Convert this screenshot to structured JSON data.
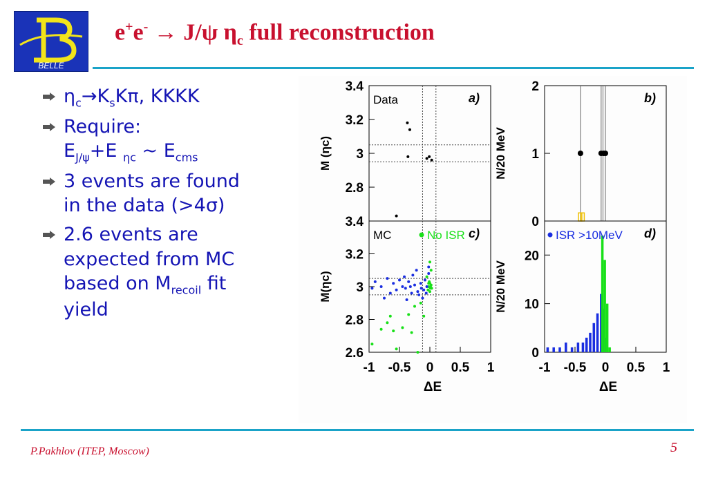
{
  "header": {
    "logo_text": "BELLE",
    "title_main": "e",
    "title_sup1": "+",
    "title_mid": "e",
    "title_sup2": "-",
    "title_arrow": " → ",
    "title_jpsi": "J/ψ η",
    "title_sub": "c",
    "title_end": " full reconstruction"
  },
  "bullets": {
    "b1": {
      "eta": "η",
      "c": "c",
      "arrow": "→",
      "k": "K",
      "s": "s",
      "rest": "Kπ, KKKK"
    },
    "b2": {
      "line1": "Require:",
      "e1": "E",
      "sub1": "J/ψ",
      "plus": "+E ",
      "sub2": "ηc",
      "tilde": " ~ E",
      "sub3": "cms"
    },
    "b3": {
      "text1": "3 events are found",
      "text2": "in the data (>4σ)"
    },
    "b4": {
      "text1": "2.6 events are",
      "text2": "expected from MC",
      "text3": "based on M",
      "sub": "recoil",
      "text4": "  fit",
      "text5": "yield"
    }
  },
  "footer": {
    "author": "P.Pakhlov (ITEP, Moscow)",
    "page": "5"
  },
  "chart_data": [
    {
      "type": "scatter",
      "panel": "a)",
      "label": "Data",
      "ylabel": "M (ηc)",
      "xlim": [
        -1,
        1
      ],
      "ylim": [
        2.6,
        3.4
      ],
      "yticks": [
        "3.4",
        "3.2",
        "3",
        "2.8"
      ],
      "vlines": [
        -0.12,
        0.1
      ],
      "hlines": [
        2.95,
        3.05
      ],
      "points": [
        {
          "x": -0.37,
          "y": 3.18
        },
        {
          "x": -0.33,
          "y": 3.14
        },
        {
          "x": -0.36,
          "y": 2.98
        },
        {
          "x": -0.05,
          "y": 2.97
        },
        {
          "x": -0.01,
          "y": 2.98
        },
        {
          "x": 0.03,
          "y": 2.96
        },
        {
          "x": -0.55,
          "y": 2.63
        }
      ]
    },
    {
      "type": "bar",
      "panel": "b)",
      "ylabel": "N/20 MeV",
      "xlim": [
        -1,
        1
      ],
      "ylim": [
        0,
        2
      ],
      "yticks": [
        "2",
        "1",
        "0"
      ],
      "points": [
        {
          "x": -0.41,
          "y": 1
        },
        {
          "x": -0.07,
          "y": 1
        },
        {
          "x": -0.03,
          "y": 1
        },
        {
          "x": 0.0,
          "y": 1
        }
      ],
      "vlines": [
        -0.41,
        -0.07,
        -0.04,
        0.0
      ],
      "mc_bars": [
        {
          "x": -0.41,
          "y": 0.12
        },
        {
          "x": -0.37,
          "y": 0.12
        }
      ]
    },
    {
      "type": "scatter",
      "panel": "c)",
      "label": "MC",
      "legend": "No ISR",
      "ylabel": "M(ηc)",
      "xlabel": "ΔE",
      "xlim": [
        -1,
        1
      ],
      "ylim": [
        2.6,
        3.4
      ],
      "yticks": [
        "3.4",
        "3.2",
        "3",
        "2.8",
        "2.6"
      ],
      "xticks": [
        "-1",
        "-0.5",
        "0",
        "0.5",
        "1"
      ],
      "vlines": [
        -0.12,
        0.1
      ],
      "hlines": [
        2.95,
        3.05
      ],
      "series": [
        {
          "name": "No ISR",
          "color": "#18e018",
          "points": [
            [
              -0.02,
              3.0
            ],
            [
              0.0,
              3.02
            ],
            [
              0.01,
              2.99
            ],
            [
              -0.03,
              2.98
            ],
            [
              0.02,
              3.01
            ],
            [
              -0.01,
              3.03
            ],
            [
              0.0,
              2.97
            ],
            [
              0.01,
              3.0
            ],
            [
              -0.02,
              3.02
            ],
            [
              0.03,
              2.99
            ],
            [
              0.0,
              3.15
            ],
            [
              0.02,
              3.1
            ],
            [
              -0.05,
              3.06
            ],
            [
              -0.25,
              2.88
            ],
            [
              -0.3,
              2.72
            ],
            [
              -0.45,
              2.75
            ],
            [
              -0.6,
              2.73
            ],
            [
              -0.7,
              2.78
            ],
            [
              -0.2,
              2.6
            ],
            [
              -0.95,
              2.65
            ],
            [
              -0.15,
              2.9
            ],
            [
              -0.1,
              2.82
            ],
            [
              -0.55,
              2.62
            ],
            [
              -0.35,
              2.83
            ],
            [
              -0.8,
              2.74
            ],
            [
              -0.65,
              2.82
            ]
          ]
        },
        {
          "name": "ISR >10MeV",
          "color": "#1a2ee0",
          "points": [
            [
              -0.05,
              3.0
            ],
            [
              -0.1,
              2.98
            ],
            [
              -0.15,
              3.02
            ],
            [
              -0.2,
              2.97
            ],
            [
              -0.25,
              3.01
            ],
            [
              -0.3,
              2.96
            ],
            [
              -0.35,
              3.03
            ],
            [
              -0.4,
              2.99
            ],
            [
              -0.45,
              3.0
            ],
            [
              -0.5,
              3.04
            ],
            [
              -0.55,
              2.98
            ],
            [
              -0.6,
              3.02
            ],
            [
              -0.7,
              3.05
            ],
            [
              -0.8,
              3.0
            ],
            [
              -0.9,
              3.03
            ],
            [
              -0.95,
              2.99
            ],
            [
              -0.12,
              2.93
            ],
            [
              -0.18,
              2.95
            ],
            [
              -0.08,
              3.04
            ],
            [
              -0.02,
              3.08
            ],
            [
              -0.28,
              3.07
            ],
            [
              -0.38,
              2.92
            ],
            [
              -0.65,
              2.96
            ],
            [
              -0.75,
              2.93
            ],
            [
              -0.22,
              3.1
            ],
            [
              -0.06,
              2.96
            ],
            [
              -0.14,
              2.99
            ],
            [
              -0.32,
              3.0
            ],
            [
              -0.42,
              3.06
            ],
            [
              -0.02,
              3.12
            ]
          ]
        }
      ]
    },
    {
      "type": "bar",
      "panel": "d)",
      "legend": "ISR >10MeV",
      "ylabel": "N/20 MeV",
      "xlabel": "ΔE",
      "xlim": [
        -1,
        1
      ],
      "ylim": [
        0,
        27
      ],
      "yticks": [
        "20",
        "10",
        "0"
      ],
      "xticks": [
        "-1",
        "-0.5",
        "0",
        "0.5",
        "1"
      ],
      "series": [
        {
          "name": "ISR >10MeV",
          "color": "#1a2ee0",
          "bars": [
            [
              -0.95,
              1
            ],
            [
              -0.85,
              1
            ],
            [
              -0.75,
              1
            ],
            [
              -0.65,
              2
            ],
            [
              -0.55,
              1
            ],
            [
              -0.45,
              2
            ],
            [
              -0.37,
              2
            ],
            [
              -0.31,
              3
            ],
            [
              -0.25,
              4
            ],
            [
              -0.19,
              6
            ],
            [
              -0.13,
              8
            ],
            [
              -0.07,
              12
            ],
            [
              -0.03,
              9
            ],
            [
              0.01,
              3
            ]
          ]
        },
        {
          "name": "No ISR",
          "color": "#18e018",
          "bars": [
            [
              -0.05,
              24
            ],
            [
              -0.01,
              19
            ],
            [
              0.03,
              10
            ],
            [
              0.07,
              1
            ]
          ]
        }
      ]
    }
  ]
}
